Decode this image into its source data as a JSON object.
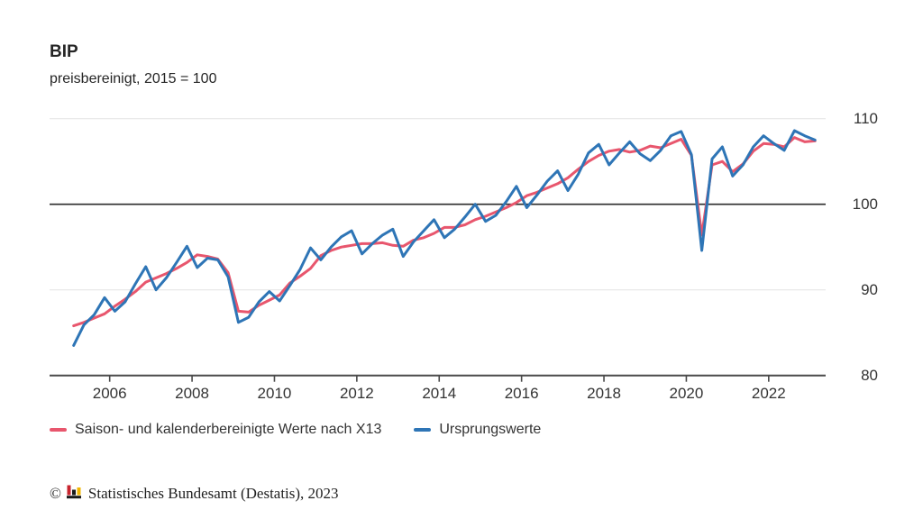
{
  "header": {
    "title": "BIP",
    "subtitle": "preisbereinigt, 2015 = 100"
  },
  "legend": {
    "items": [
      {
        "label": "Saison- und kalenderbereinigte Werte nach X13",
        "color": "#e8566d"
      },
      {
        "label": "Ursprungswerte",
        "color": "#2e75b6"
      }
    ]
  },
  "footer": {
    "copyright_symbol": "©",
    "logo_icon": "destatis-bar-chart-logo",
    "logo_colors": {
      "red": "#c8242e",
      "black": "#1a1a1a",
      "gold": "#f0b400"
    },
    "source": "Statistisches Bundesamt (Destatis), 2023"
  },
  "chart_data": {
    "type": "line",
    "title": "BIP",
    "subtitle": "preisbereinigt, 2015 = 100",
    "xlabel": "",
    "ylabel": "",
    "x_unit": "quarter",
    "x_start": "2005-Q1",
    "x_end": "2023-Q1",
    "x_ticks": [
      2006,
      2008,
      2010,
      2012,
      2014,
      2016,
      2018,
      2020,
      2022
    ],
    "y_ticks": [
      110,
      100,
      90,
      80
    ],
    "ylim": [
      80,
      110
    ],
    "reference_line": 100,
    "grid": "horizontal",
    "legend_position": "bottom",
    "series": [
      {
        "name": "Saison- und kalenderbereinigte Werte nach X13",
        "color": "#e8566d",
        "values": [
          85.8,
          86.2,
          86.7,
          87.2,
          88.1,
          88.9,
          89.8,
          90.9,
          91.4,
          91.9,
          92.5,
          93.2,
          94.1,
          93.9,
          93.6,
          92.0,
          87.5,
          87.4,
          88.2,
          88.8,
          89.4,
          90.8,
          91.6,
          92.5,
          94.0,
          94.6,
          95.0,
          95.2,
          95.4,
          95.4,
          95.5,
          95.2,
          95.1,
          95.8,
          96.1,
          96.6,
          97.3,
          97.3,
          97.6,
          98.2,
          98.6,
          99.1,
          99.6,
          100.2,
          101.0,
          101.4,
          101.9,
          102.4,
          103.1,
          104.1,
          105.0,
          105.7,
          106.2,
          106.4,
          106.1,
          106.3,
          106.8,
          106.6,
          107.1,
          107.6,
          105.7,
          96.4,
          104.6,
          105.0,
          103.8,
          104.7,
          106.2,
          107.1,
          107.0,
          106.7,
          107.8,
          107.3,
          107.4
        ]
      },
      {
        "name": "Ursprungswerte",
        "color": "#2e75b6",
        "values": [
          83.5,
          85.9,
          87.1,
          89.1,
          87.5,
          88.6,
          90.7,
          92.7,
          90.0,
          91.4,
          93.2,
          95.1,
          92.6,
          93.7,
          93.5,
          91.5,
          86.2,
          86.8,
          88.6,
          89.8,
          88.7,
          90.5,
          92.4,
          94.9,
          93.5,
          95.0,
          96.2,
          96.9,
          94.2,
          95.4,
          96.4,
          97.1,
          93.9,
          95.6,
          96.9,
          98.2,
          96.1,
          97.1,
          98.5,
          100.0,
          98.0,
          98.7,
          100.3,
          102.1,
          99.6,
          101.1,
          102.7,
          103.9,
          101.6,
          103.5,
          106.0,
          107.0,
          104.6,
          106.0,
          107.3,
          105.9,
          105.1,
          106.3,
          108.0,
          108.5,
          105.8,
          94.6,
          105.3,
          106.7,
          103.3,
          104.6,
          106.7,
          108.0,
          107.1,
          106.3,
          108.6,
          108.0,
          107.5
        ]
      }
    ]
  }
}
